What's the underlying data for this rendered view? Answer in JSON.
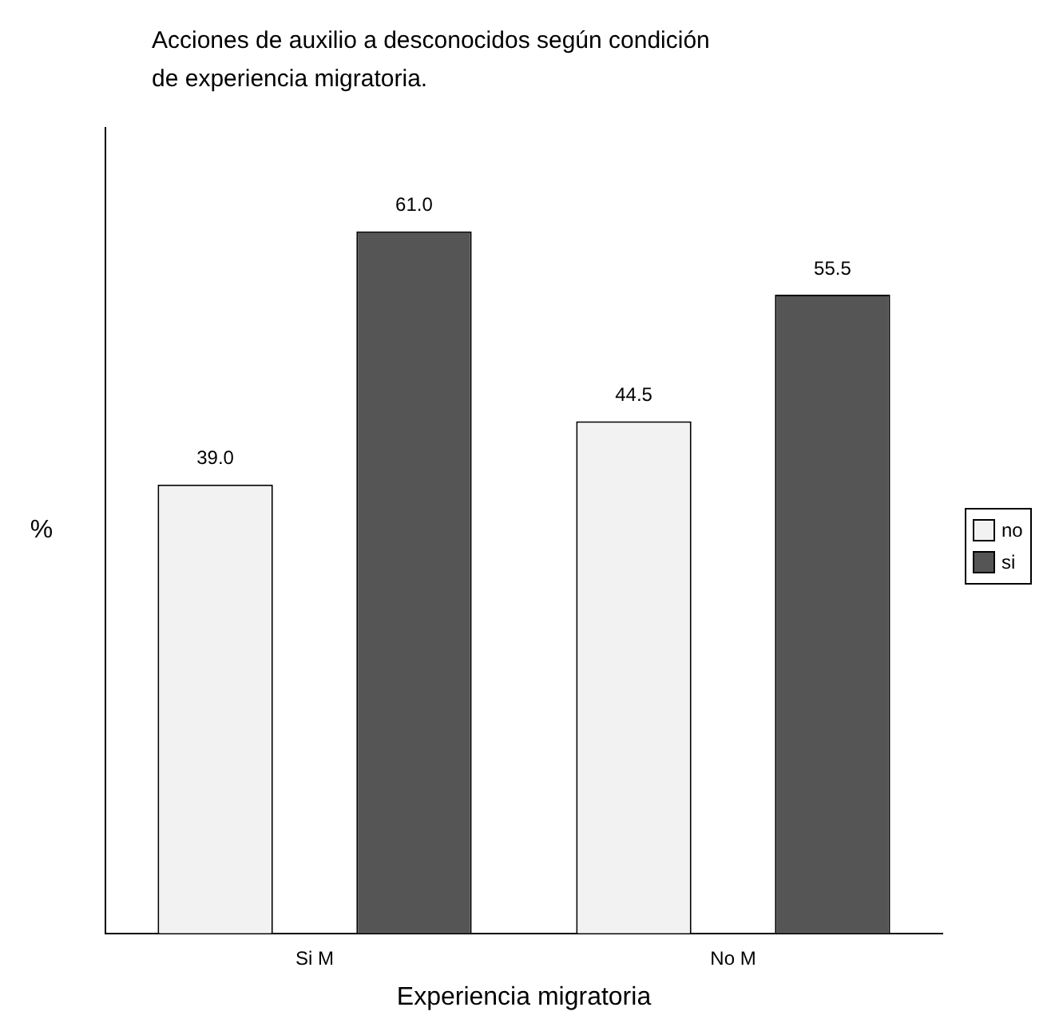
{
  "chart_data": {
    "type": "bar",
    "title": "Acciones de auxilio a desconocidos según condición de experiencia migratoria.",
    "xlabel": "Experiencia migratoria",
    "ylabel": "%",
    "categories": [
      "Si M",
      "No M"
    ],
    "series": [
      {
        "name": "no",
        "color": "#f2f2f2",
        "values": [
          39.0,
          44.5
        ],
        "value_labels": [
          "39.0",
          "44.5"
        ]
      },
      {
        "name": "si",
        "color": "#555555",
        "values": [
          61.0,
          55.5
        ],
        "value_labels": [
          "61.0",
          "55.5"
        ]
      }
    ],
    "ylim": [
      0,
      70
    ],
    "tick_labels": "x",
    "legend": "right",
    "grid": false
  }
}
